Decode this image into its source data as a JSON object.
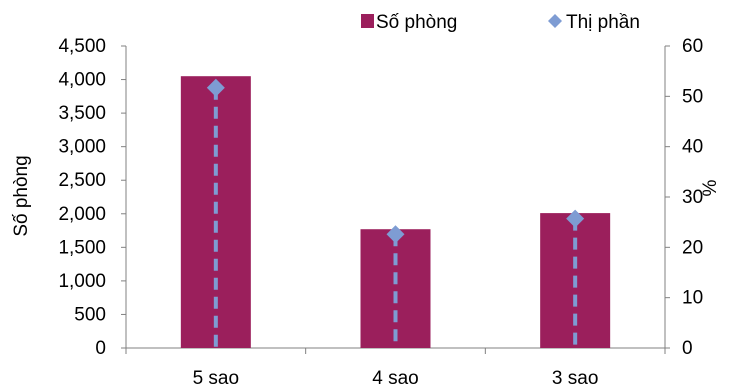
{
  "chart_data": {
    "type": "bar",
    "categories": [
      "5 sao",
      "4 sao",
      "3 sao"
    ],
    "series": [
      {
        "name": "Số phòng",
        "type": "bar",
        "axis": "left",
        "color": "#9b1f5c",
        "values": [
          4050,
          1770,
          2010
        ]
      },
      {
        "name": "Thị phần",
        "type": "scatter",
        "axis": "right",
        "color": "#7e9cd3",
        "marker": "diamond",
        "drop_lines": "dashed",
        "values": [
          51.7,
          22.6,
          25.7
        ]
      }
    ],
    "ylabel": "Số phòng",
    "ylabel_right": "%",
    "ylim": [
      0,
      4500
    ],
    "ylim_right": [
      0,
      60
    ],
    "yticks": [
      "0",
      "500",
      "1,000",
      "1,500",
      "2,000",
      "2,500",
      "3,000",
      "3,500",
      "4,000",
      "4,500"
    ],
    "yticks_right": [
      "0",
      "10",
      "20",
      "30",
      "40",
      "50",
      "60"
    ],
    "legend_position": "top-right",
    "grid": false
  }
}
